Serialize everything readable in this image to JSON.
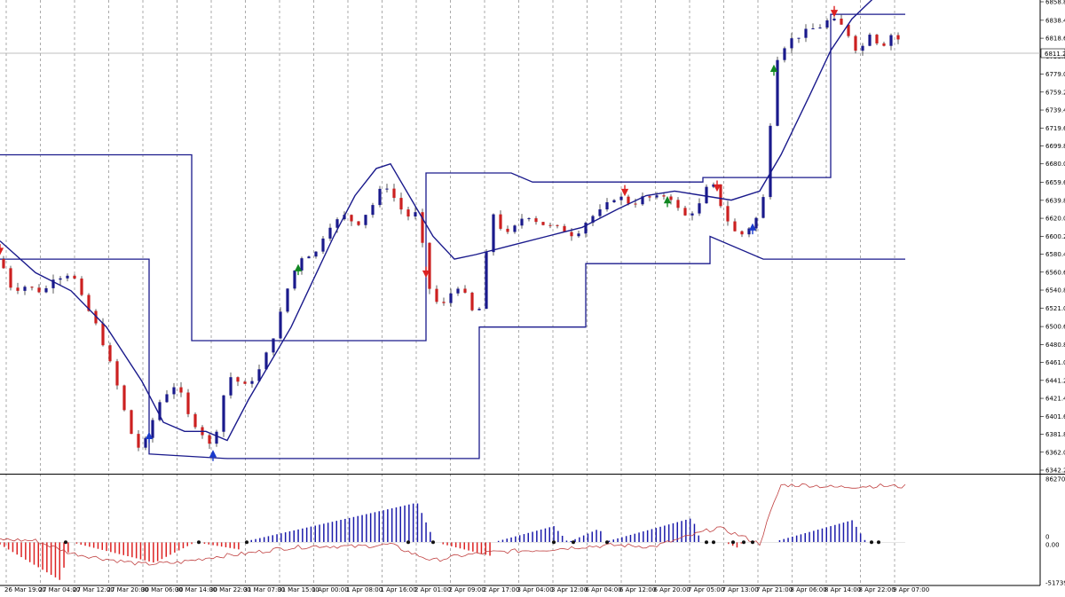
{
  "chart_data": [
    {
      "type": "candlestick",
      "price_axis_ticks": [
        "6858.80",
        "6838.40",
        "6818.60",
        "6798.80",
        "6779.00",
        "6759.20",
        "6739.40",
        "6719.60",
        "6699.80",
        "6680.00",
        "6659.60",
        "6639.80",
        "6620.00",
        "6600.20",
        "6580.40",
        "6560.60",
        "6540.80",
        "6521.00",
        "6500.60",
        "6480.80",
        "6461.00",
        "6441.20",
        "6421.40",
        "6401.60",
        "6381.80",
        "6362.00",
        "6342.20"
      ],
      "ylim": [
        6342.2,
        6858.8
      ],
      "current_price": "6811.25",
      "time_labels": [
        "26 Mar 19:00",
        "27 Mar 04:00",
        "27 Mar 12:00",
        "27 Mar 20:00",
        "30 Mar 06:00",
        "30 Mar 14:00",
        "30 Mar 22:00",
        "31 Mar 07:00",
        "31 Mar 15:00",
        "1 Apr 00:00",
        "1 Apr 08:00",
        "1 Apr 16:00",
        "2 Apr 01:00",
        "2 Apr 09:00",
        "2 Apr 17:00",
        "3 Apr 04:00",
        "3 Apr 12:00",
        "6 Apr 04:00",
        "6 Apr 12:00",
        "6 Apr 20:00",
        "7 Apr 05:00",
        "7 Apr 13:00",
        "7 Apr 21:00",
        "8 Apr 06:00",
        "8 Apr 14:00",
        "8 Apr 22:00",
        "9 Apr 07:00"
      ],
      "close_path": [
        [
          0,
          6575
        ],
        [
          4,
          6555
        ],
        [
          8,
          6535
        ],
        [
          12,
          6550
        ],
        [
          16,
          6540
        ],
        [
          20,
          6545
        ],
        [
          24,
          6535
        ],
        [
          28,
          6550
        ],
        [
          32,
          6560
        ],
        [
          36,
          6552
        ],
        [
          40,
          6565
        ],
        [
          44,
          6540
        ],
        [
          48,
          6525
        ],
        [
          52,
          6510
        ],
        [
          56,
          6495
        ],
        [
          60,
          6470
        ],
        [
          64,
          6450
        ],
        [
          68,
          6420
        ],
        [
          72,
          6395
        ],
        [
          76,
          6370
        ],
        [
          80,
          6365
        ],
        [
          84,
          6385
        ],
        [
          88,
          6410
        ],
        [
          92,
          6425
        ],
        [
          96,
          6430
        ],
        [
          100,
          6440
        ],
        [
          104,
          6410
        ],
        [
          108,
          6395
        ],
        [
          112,
          6390
        ],
        [
          116,
          6375
        ],
        [
          120,
          6365
        ],
        [
          124,
          6410
        ],
        [
          128,
          6440
        ],
        [
          132,
          6450
        ],
        [
          136,
          6430
        ],
        [
          140,
          6440
        ],
        [
          144,
          6445
        ],
        [
          148,
          6460
        ],
        [
          152,
          6480
        ],
        [
          156,
          6500
        ],
        [
          160,
          6530
        ],
        [
          164,
          6555
        ],
        [
          168,
          6570
        ],
        [
          172,
          6585
        ],
        [
          176,
          6575
        ],
        [
          180,
          6590
        ],
        [
          184,
          6610
        ],
        [
          188,
          6615
        ],
        [
          192,
          6620
        ],
        [
          196,
          6625
        ],
        [
          200,
          6610
        ],
        [
          204,
          6620
        ],
        [
          208,
          6630
        ],
        [
          212,
          6640
        ],
        [
          216,
          6660
        ],
        [
          220,
          6650
        ],
        [
          224,
          6635
        ],
        [
          228,
          6625
        ],
        [
          232,
          6620
        ],
        [
          236,
          6630
        ],
        [
          240,
          6550
        ],
        [
          244,
          6535
        ],
        [
          248,
          6520
        ],
        [
          252,
          6530
        ],
        [
          256,
          6545
        ],
        [
          260,
          6545
        ],
        [
          264,
          6525
        ],
        [
          268,
          6510
        ],
        [
          272,
          6530
        ],
        [
          276,
          6630
        ],
        [
          280,
          6620
        ],
        [
          284,
          6600
        ],
        [
          288,
          6605
        ],
        [
          292,
          6615
        ],
        [
          296,
          6625
        ],
        [
          300,
          6620
        ],
        [
          304,
          6615
        ],
        [
          308,
          6612
        ],
        [
          312,
          6610
        ],
        [
          316,
          6608
        ],
        [
          320,
          6605
        ],
        [
          324,
          6600
        ],
        [
          328,
          6612
        ],
        [
          332,
          6620
        ],
        [
          336,
          6625
        ],
        [
          340,
          6630
        ],
        [
          344,
          6640
        ],
        [
          348,
          6645
        ],
        [
          352,
          6640
        ],
        [
          356,
          6635
        ],
        [
          360,
          6640
        ],
        [
          364,
          6645
        ],
        [
          368,
          6640
        ],
        [
          372,
          6645
        ],
        [
          376,
          6645
        ],
        [
          380,
          6640
        ],
        [
          384,
          6620
        ],
        [
          388,
          6625
        ],
        [
          392,
          6630
        ],
        [
          396,
          6640
        ],
        [
          400,
          6665
        ],
        [
          404,
          6645
        ],
        [
          408,
          6625
        ],
        [
          412,
          6610
        ],
        [
          416,
          6600
        ],
        [
          420,
          6605
        ],
        [
          424,
          6615
        ],
        [
          428,
          6625
        ],
        [
          432,
          6660
        ],
        [
          436,
          6790
        ],
        [
          440,
          6805
        ],
        [
          444,
          6815
        ],
        [
          448,
          6820
        ],
        [
          452,
          6822
        ],
        [
          456,
          6830
        ],
        [
          460,
          6828
        ],
        [
          464,
          6835
        ],
        [
          468,
          6840
        ],
        [
          472,
          6835
        ],
        [
          476,
          6830
        ],
        [
          480,
          6815
        ],
        [
          484,
          6800
        ],
        [
          488,
          6820
        ],
        [
          492,
          6830
        ],
        [
          496,
          6800
        ],
        [
          500,
          6825
        ],
        [
          504,
          6820
        ],
        [
          508,
          6815
        ],
        [
          512,
          6812
        ],
        [
          516,
          6812
        ],
        [
          520,
          6810
        ],
        [
          524,
          6811
        ]
      ],
      "moving_average": [
        [
          0,
          6595
        ],
        [
          20,
          6560
        ],
        [
          40,
          6540
        ],
        [
          60,
          6500
        ],
        [
          80,
          6440
        ],
        [
          92,
          6395
        ],
        [
          104,
          6385
        ],
        [
          116,
          6385
        ],
        [
          128,
          6375
        ],
        [
          140,
          6420
        ],
        [
          152,
          6460
        ],
        [
          164,
          6500
        ],
        [
          176,
          6550
        ],
        [
          188,
          6600
        ],
        [
          200,
          6645
        ],
        [
          212,
          6675
        ],
        [
          220,
          6680
        ],
        [
          232,
          6640
        ],
        [
          244,
          6600
        ],
        [
          256,
          6575
        ],
        [
          268,
          6580
        ],
        [
          288,
          6590
        ],
        [
          308,
          6600
        ],
        [
          328,
          6610
        ],
        [
          348,
          6630
        ],
        [
          364,
          6645
        ],
        [
          380,
          6650
        ],
        [
          396,
          6645
        ],
        [
          412,
          6640
        ],
        [
          428,
          6650
        ],
        [
          440,
          6690
        ],
        [
          456,
          6755
        ],
        [
          468,
          6805
        ],
        [
          480,
          6840
        ],
        [
          496,
          6870
        ],
        [
          510,
          6880
        ]
      ],
      "channel_upper": [
        [
          0,
          6690
        ],
        [
          108,
          6690
        ],
        [
          108,
          6485
        ],
        [
          240,
          6485
        ],
        [
          240,
          6670
        ],
        [
          288,
          6670
        ],
        [
          300,
          6660
        ],
        [
          396,
          6660
        ],
        [
          396,
          6665
        ],
        [
          468,
          6665
        ],
        [
          468,
          6845
        ],
        [
          510,
          6845
        ]
      ],
      "channel_lower": [
        [
          0,
          6575
        ],
        [
          84,
          6575
        ],
        [
          84,
          6360
        ],
        [
          128,
          6355
        ],
        [
          270,
          6355
        ],
        [
          270,
          6500
        ],
        [
          330,
          6500
        ],
        [
          330,
          6570
        ],
        [
          400,
          6570
        ],
        [
          400,
          6600
        ],
        [
          430,
          6575
        ],
        [
          510,
          6575
        ]
      ],
      "signal_arrows": [
        {
          "x": 0,
          "dir": "down",
          "color": "red"
        },
        {
          "x": 84,
          "dir": "up",
          "color": "blue"
        },
        {
          "x": 120,
          "dir": "up",
          "color": "blue"
        },
        {
          "x": 168,
          "dir": "up",
          "color": "green"
        },
        {
          "x": 240,
          "dir": "down",
          "color": "red"
        },
        {
          "x": 352,
          "dir": "down",
          "color": "red"
        },
        {
          "x": 376,
          "dir": "up",
          "color": "green"
        },
        {
          "x": 404,
          "dir": "down",
          "color": "red"
        },
        {
          "x": 424,
          "dir": "up",
          "color": "blue"
        },
        {
          "x": 436,
          "dir": "up",
          "color": "green"
        },
        {
          "x": 470,
          "dir": "down",
          "color": "red"
        }
      ]
    },
    {
      "type": "bar",
      "indicator_axis_ticks": [
        "86270",
        "0",
        "0.00",
        "-51739"
      ],
      "ylim": [
        -51739,
        86270
      ],
      "histogram": [
        [
          0,
          -3000
        ],
        [
          34,
          -52000
        ],
        [
          40,
          0
        ],
        [
          87,
          -28000
        ],
        [
          110,
          0
        ],
        [
          135,
          -10000
        ],
        [
          136,
          0
        ],
        [
          235,
          54000
        ],
        [
          245,
          0
        ],
        [
          277,
          -19000
        ],
        [
          278,
          0
        ],
        [
          312,
          22000
        ],
        [
          320,
          0
        ],
        [
          338,
          19000
        ],
        [
          340,
          0
        ],
        [
          390,
          33000
        ],
        [
          395,
          0
        ],
        [
          406,
          0
        ],
        [
          408,
          0
        ],
        [
          416,
          -8000
        ],
        [
          418,
          0
        ],
        [
          434,
          -1000
        ],
        [
          435,
          0
        ],
        [
          480,
          30000
        ],
        [
          488,
          0
        ],
        [
          498,
          1000
        ]
      ],
      "signal_line": [
        [
          0,
          4000
        ],
        [
          20,
          2000
        ],
        [
          40,
          -15000
        ],
        [
          60,
          -23000
        ],
        [
          80,
          -30000
        ],
        [
          100,
          -28000
        ],
        [
          120,
          -20000
        ],
        [
          140,
          -15000
        ],
        [
          160,
          -8000
        ],
        [
          180,
          -5000
        ],
        [
          200,
          -6000
        ],
        [
          220,
          -3000
        ],
        [
          232,
          -15000
        ],
        [
          244,
          -25000
        ],
        [
          260,
          -18000
        ],
        [
          276,
          -14000
        ],
        [
          290,
          -12000
        ],
        [
          308,
          -10000
        ],
        [
          328,
          -6000
        ],
        [
          348,
          -4000
        ],
        [
          368,
          -6000
        ],
        [
          388,
          8000
        ],
        [
          404,
          20000
        ],
        [
          416,
          10000
        ],
        [
          428,
          -2000
        ],
        [
          434,
          40000
        ],
        [
          440,
          78000
        ],
        [
          456,
          78000
        ],
        [
          470,
          75000
        ],
        [
          480,
          76000
        ],
        [
          496,
          77000
        ],
        [
          510,
          76000
        ]
      ],
      "dot_markers": [
        37,
        112,
        139,
        230,
        244,
        312,
        323,
        342,
        398,
        402,
        413,
        419,
        424,
        491,
        495
      ]
    }
  ]
}
